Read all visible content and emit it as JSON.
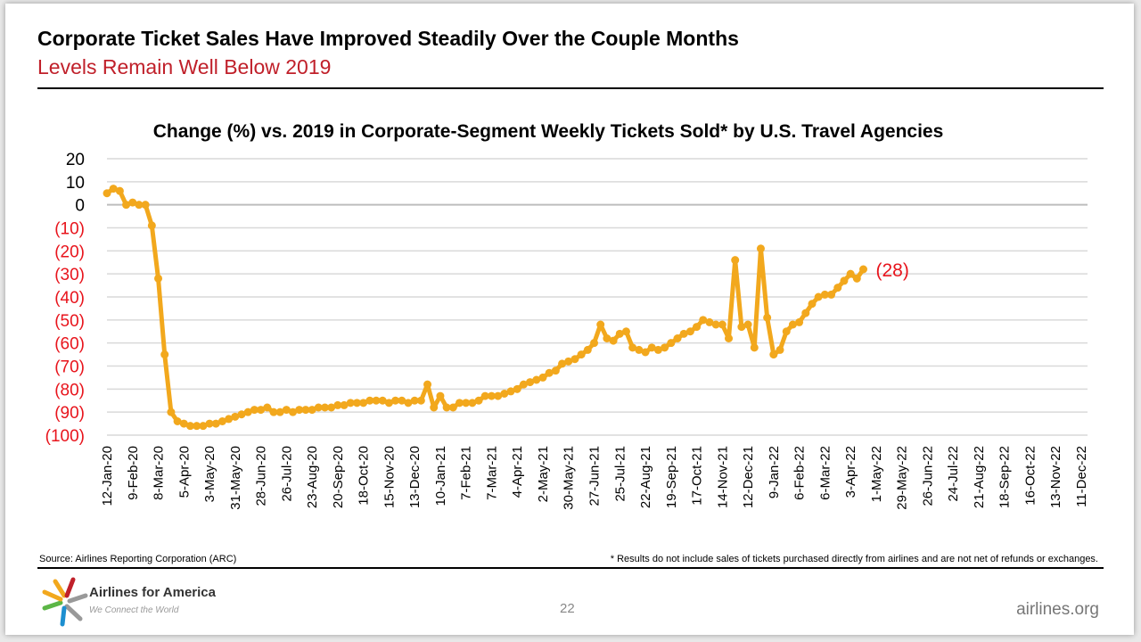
{
  "slide": {
    "title": "Corporate Ticket Sales Have Improved Steadily Over the Couple Months",
    "subtitle": "Levels Remain Well Below 2019",
    "source": "Source: Airlines Reporting Corporation (ARC)",
    "footnote": "* Results do not include sales of tickets purchased directly from airlines and are not net of refunds or exchanges.",
    "page_number": "22",
    "website": "airlines.org",
    "logo": {
      "name": "Airlines for America",
      "tagline": "We Connect the World"
    }
  },
  "colors": {
    "series": "#f2a81d",
    "negative_label": "#e8141c",
    "subtitle": "#c0202a"
  },
  "chart_data": {
    "type": "line",
    "title": "Change (%) vs. 2019 in Corporate-Segment Weekly Tickets Sold* by U.S. Travel Agencies",
    "ylim": [
      -100,
      20
    ],
    "y_ticks": [
      20,
      10,
      0,
      -10,
      -20,
      -30,
      -40,
      -50,
      -60,
      -70,
      -80,
      -90,
      -100
    ],
    "y_tick_labels": [
      "20",
      "10",
      "0",
      "(10)",
      "(20)",
      "(30)",
      "(40)",
      "(50)",
      "(60)",
      "(70)",
      "(80)",
      "(90)",
      "(100)"
    ],
    "grid": true,
    "x_tick_labels": [
      "12-Jan-20",
      "9-Feb-20",
      "8-Mar-20",
      "5-Apr-20",
      "3-May-20",
      "31-May-20",
      "28-Jun-20",
      "26-Jul-20",
      "23-Aug-20",
      "20-Sep-20",
      "18-Oct-20",
      "15-Nov-20",
      "13-Dec-20",
      "10-Jan-21",
      "7-Feb-21",
      "7-Mar-21",
      "4-Apr-21",
      "2-May-21",
      "30-May-21",
      "27-Jun-21",
      "25-Jul-21",
      "22-Aug-21",
      "19-Sep-21",
      "17-Oct-21",
      "14-Nov-21",
      "12-Dec-21",
      "9-Jan-22",
      "6-Feb-22",
      "6-Mar-22",
      "3-Apr-22",
      "1-May-22",
      "29-May-22",
      "26-Jun-22",
      "24-Jul-22",
      "21-Aug-22",
      "18-Sep-22",
      "16-Oct-22",
      "13-Nov-22",
      "11-Dec-22"
    ],
    "values": [
      5,
      7,
      6,
      0,
      1,
      0,
      0,
      -9,
      -32,
      -65,
      -90,
      -94,
      -95,
      -96,
      -96,
      -96,
      -95,
      -95,
      -94,
      -93,
      -92,
      -91,
      -90,
      -89,
      -89,
      -88,
      -90,
      -90,
      -89,
      -90,
      -89,
      -89,
      -89,
      -88,
      -88,
      -88,
      -87,
      -87,
      -86,
      -86,
      -86,
      -85,
      -85,
      -85,
      -86,
      -85,
      -85,
      -86,
      -85,
      -85,
      -78,
      -88,
      -83,
      -88,
      -88,
      -86,
      -86,
      -86,
      -85,
      -83,
      -83,
      -83,
      -82,
      -81,
      -80,
      -78,
      -77,
      -76,
      -75,
      -73,
      -72,
      -69,
      -68,
      -67,
      -65,
      -63,
      -60,
      -52,
      -58,
      -59,
      -56,
      -55,
      -62,
      -63,
      -64,
      -62,
      -63,
      -62,
      -60,
      -58,
      -56,
      -55,
      -53,
      -50,
      -51,
      -52,
      -52,
      -58,
      -24,
      -53,
      -52,
      -62,
      -19,
      -49,
      -65,
      -63,
      -55,
      -52,
      -51,
      -47,
      -43,
      -40,
      -39,
      -39,
      -36,
      -33,
      -30,
      -32,
      -28
    ],
    "last_value_label": "(28)"
  }
}
